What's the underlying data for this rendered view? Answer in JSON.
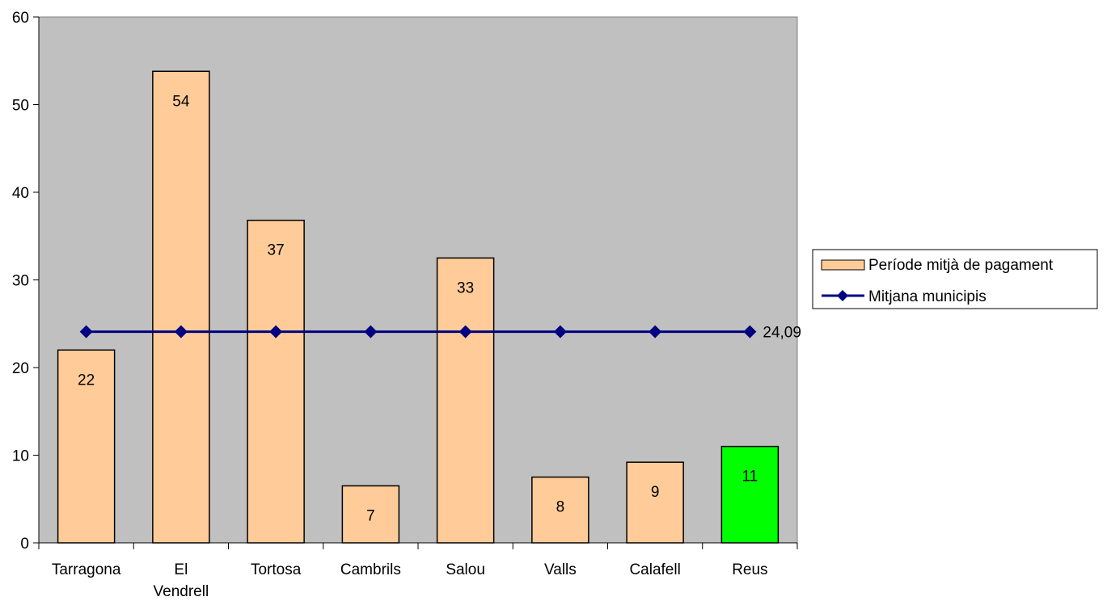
{
  "chart_data": {
    "type": "bar",
    "categories": [
      "Tarragona",
      "El Vendrell",
      "Tortosa",
      "Cambrils",
      "Salou",
      "Valls",
      "Calafell",
      "Reus"
    ],
    "category_label_lines": [
      [
        "Tarragona"
      ],
      [
        "El",
        "Vendrell"
      ],
      [
        "Tortosa"
      ],
      [
        "Cambrils"
      ],
      [
        "Salou"
      ],
      [
        "Valls"
      ],
      [
        "Calafell"
      ],
      [
        "Reus"
      ]
    ],
    "series": [
      {
        "name": "Període mitjà de pagament",
        "kind": "bar",
        "values": [
          22,
          53.8,
          36.8,
          6.5,
          32.5,
          7.5,
          9.2,
          11
        ],
        "data_labels": [
          "22",
          "54",
          "37",
          "7",
          "33",
          "8",
          "9",
          "11"
        ],
        "color": "#FFCC99",
        "highlight_index": 7,
        "highlight_color": "#00FF00"
      },
      {
        "name": "Mitjana municipis",
        "kind": "line",
        "values": [
          24.09,
          24.09,
          24.09,
          24.09,
          24.09,
          24.09,
          24.09,
          24.09
        ],
        "end_label": "24,09",
        "color": "#000080",
        "marker": "diamond"
      }
    ],
    "yticks": [
      "0",
      "10",
      "20",
      "30",
      "40",
      "50",
      "60"
    ],
    "ylim": [
      0,
      60
    ],
    "plot_background": "#C0C0C0",
    "grid": false,
    "legend_position": "right"
  }
}
